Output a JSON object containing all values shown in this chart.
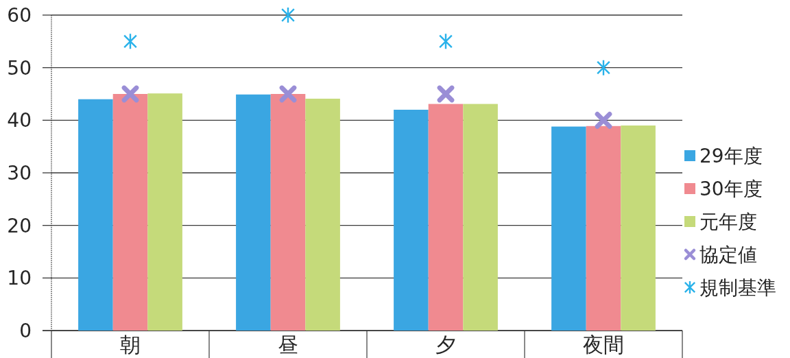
{
  "chart_data": {
    "type": "bar",
    "categories": [
      "朝",
      "昼",
      "夕",
      "夜間"
    ],
    "series": [
      {
        "name": "29年度",
        "color": "#3aa6e2",
        "values": [
          44.0,
          44.9,
          42.0,
          38.8
        ]
      },
      {
        "name": "30年度",
        "color": "#f08a90",
        "values": [
          45.0,
          45.0,
          43.1,
          38.9
        ]
      },
      {
        "name": "元年度",
        "color": "#c5da7a",
        "values": [
          45.1,
          44.1,
          43.1,
          39.0
        ]
      },
      {
        "name": "協定値",
        "type": "scatter",
        "marker": "cross",
        "color": "#9a8ed6",
        "x": [
          "朝",
          "昼",
          "夕",
          "夜間"
        ],
        "values": [
          45,
          45,
          45,
          40
        ]
      },
      {
        "name": "規制基準",
        "type": "scatter",
        "color": "#29b2ea",
        "x": [
          "朝",
          "昼",
          "夕",
          "夜間"
        ],
        "values": [
          55,
          60,
          55,
          50
        ]
      }
    ],
    "ylim": [
      0,
      60
    ],
    "yticks": [
      0,
      10,
      20,
      30,
      40,
      50,
      60
    ],
    "grid": "y",
    "legend": "right"
  }
}
